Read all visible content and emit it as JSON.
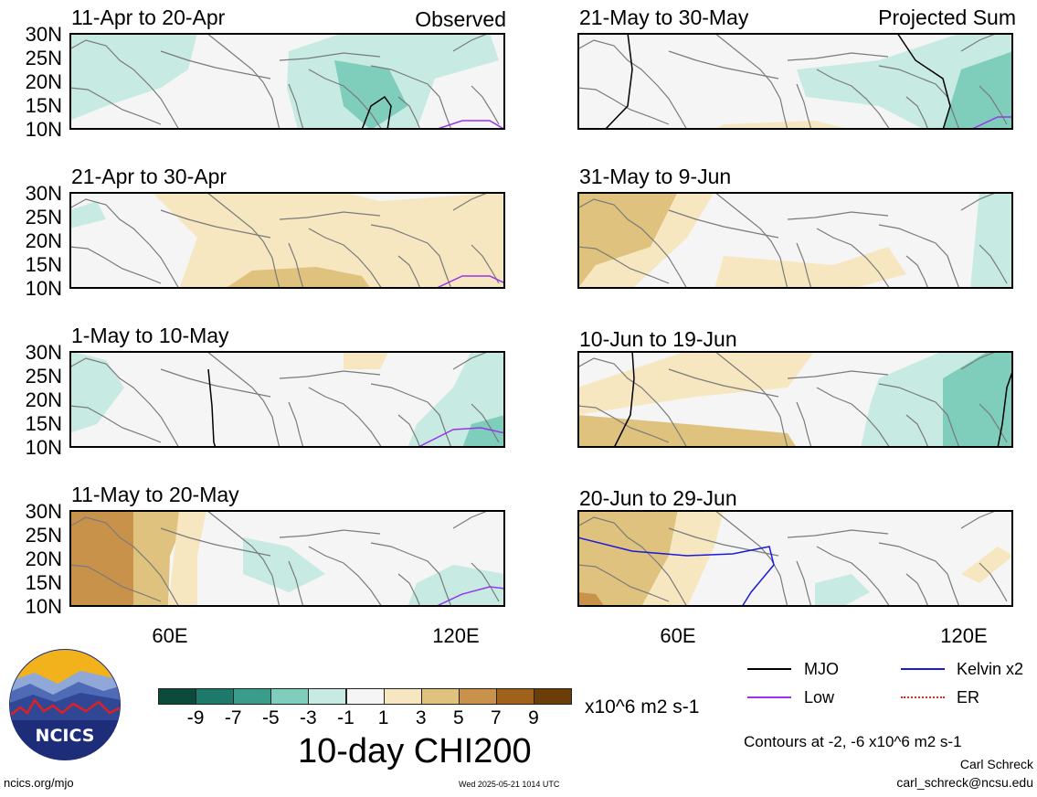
{
  "tags": {
    "observed": "Observed",
    "projected": "Projected Sum"
  },
  "panels": [
    {
      "title": "11-Apr to 20-Apr"
    },
    {
      "title": "21-Apr to 30-Apr"
    },
    {
      "title": "1-May to 10-May"
    },
    {
      "title": "11-May to 20-May"
    },
    {
      "title": "21-May to 30-May"
    },
    {
      "title": "31-May to 9-Jun"
    },
    {
      "title": "10-Jun to 19-Jun"
    },
    {
      "title": "20-Jun to 29-Jun"
    }
  ],
  "lat_labels": [
    "30N",
    "25N",
    "20N",
    "15N",
    "10N"
  ],
  "lon_labels": [
    "60E",
    "120E"
  ],
  "colorbar": {
    "colors": [
      "#0c4a3c",
      "#1d7a6a",
      "#3a9d8c",
      "#7fcdbb",
      "#c7ebe2",
      "#f5f5f5",
      "#f6e7c1",
      "#dfc27d",
      "#c9924a",
      "#a0621b",
      "#6b3d08"
    ],
    "ticks": [
      "-9",
      "-7",
      "-5",
      "-3",
      "-1",
      "1",
      "3",
      "5",
      "7",
      "9"
    ],
    "units": "x10^6 m2 s-1",
    "title": "10-day CHI200"
  },
  "legend": {
    "mjo": {
      "label": "MJO",
      "color": "#000000"
    },
    "kelvin": {
      "label": "Kelvin x2",
      "color": "#1a1adc"
    },
    "low": {
      "label": "Low",
      "color": "#9933ee"
    },
    "er": {
      "label": "ER",
      "color": "#e0261e"
    }
  },
  "contours_note": "Contours at -2, -6 x10^6 m2 s-1",
  "author": "Carl Schreck",
  "email": "carl_schreck@ncsu.edu",
  "site": "ncics.org/mjo",
  "timestamp": "Wed 2025-05-21 1014 UTC",
  "logo_text": "NCICS"
}
